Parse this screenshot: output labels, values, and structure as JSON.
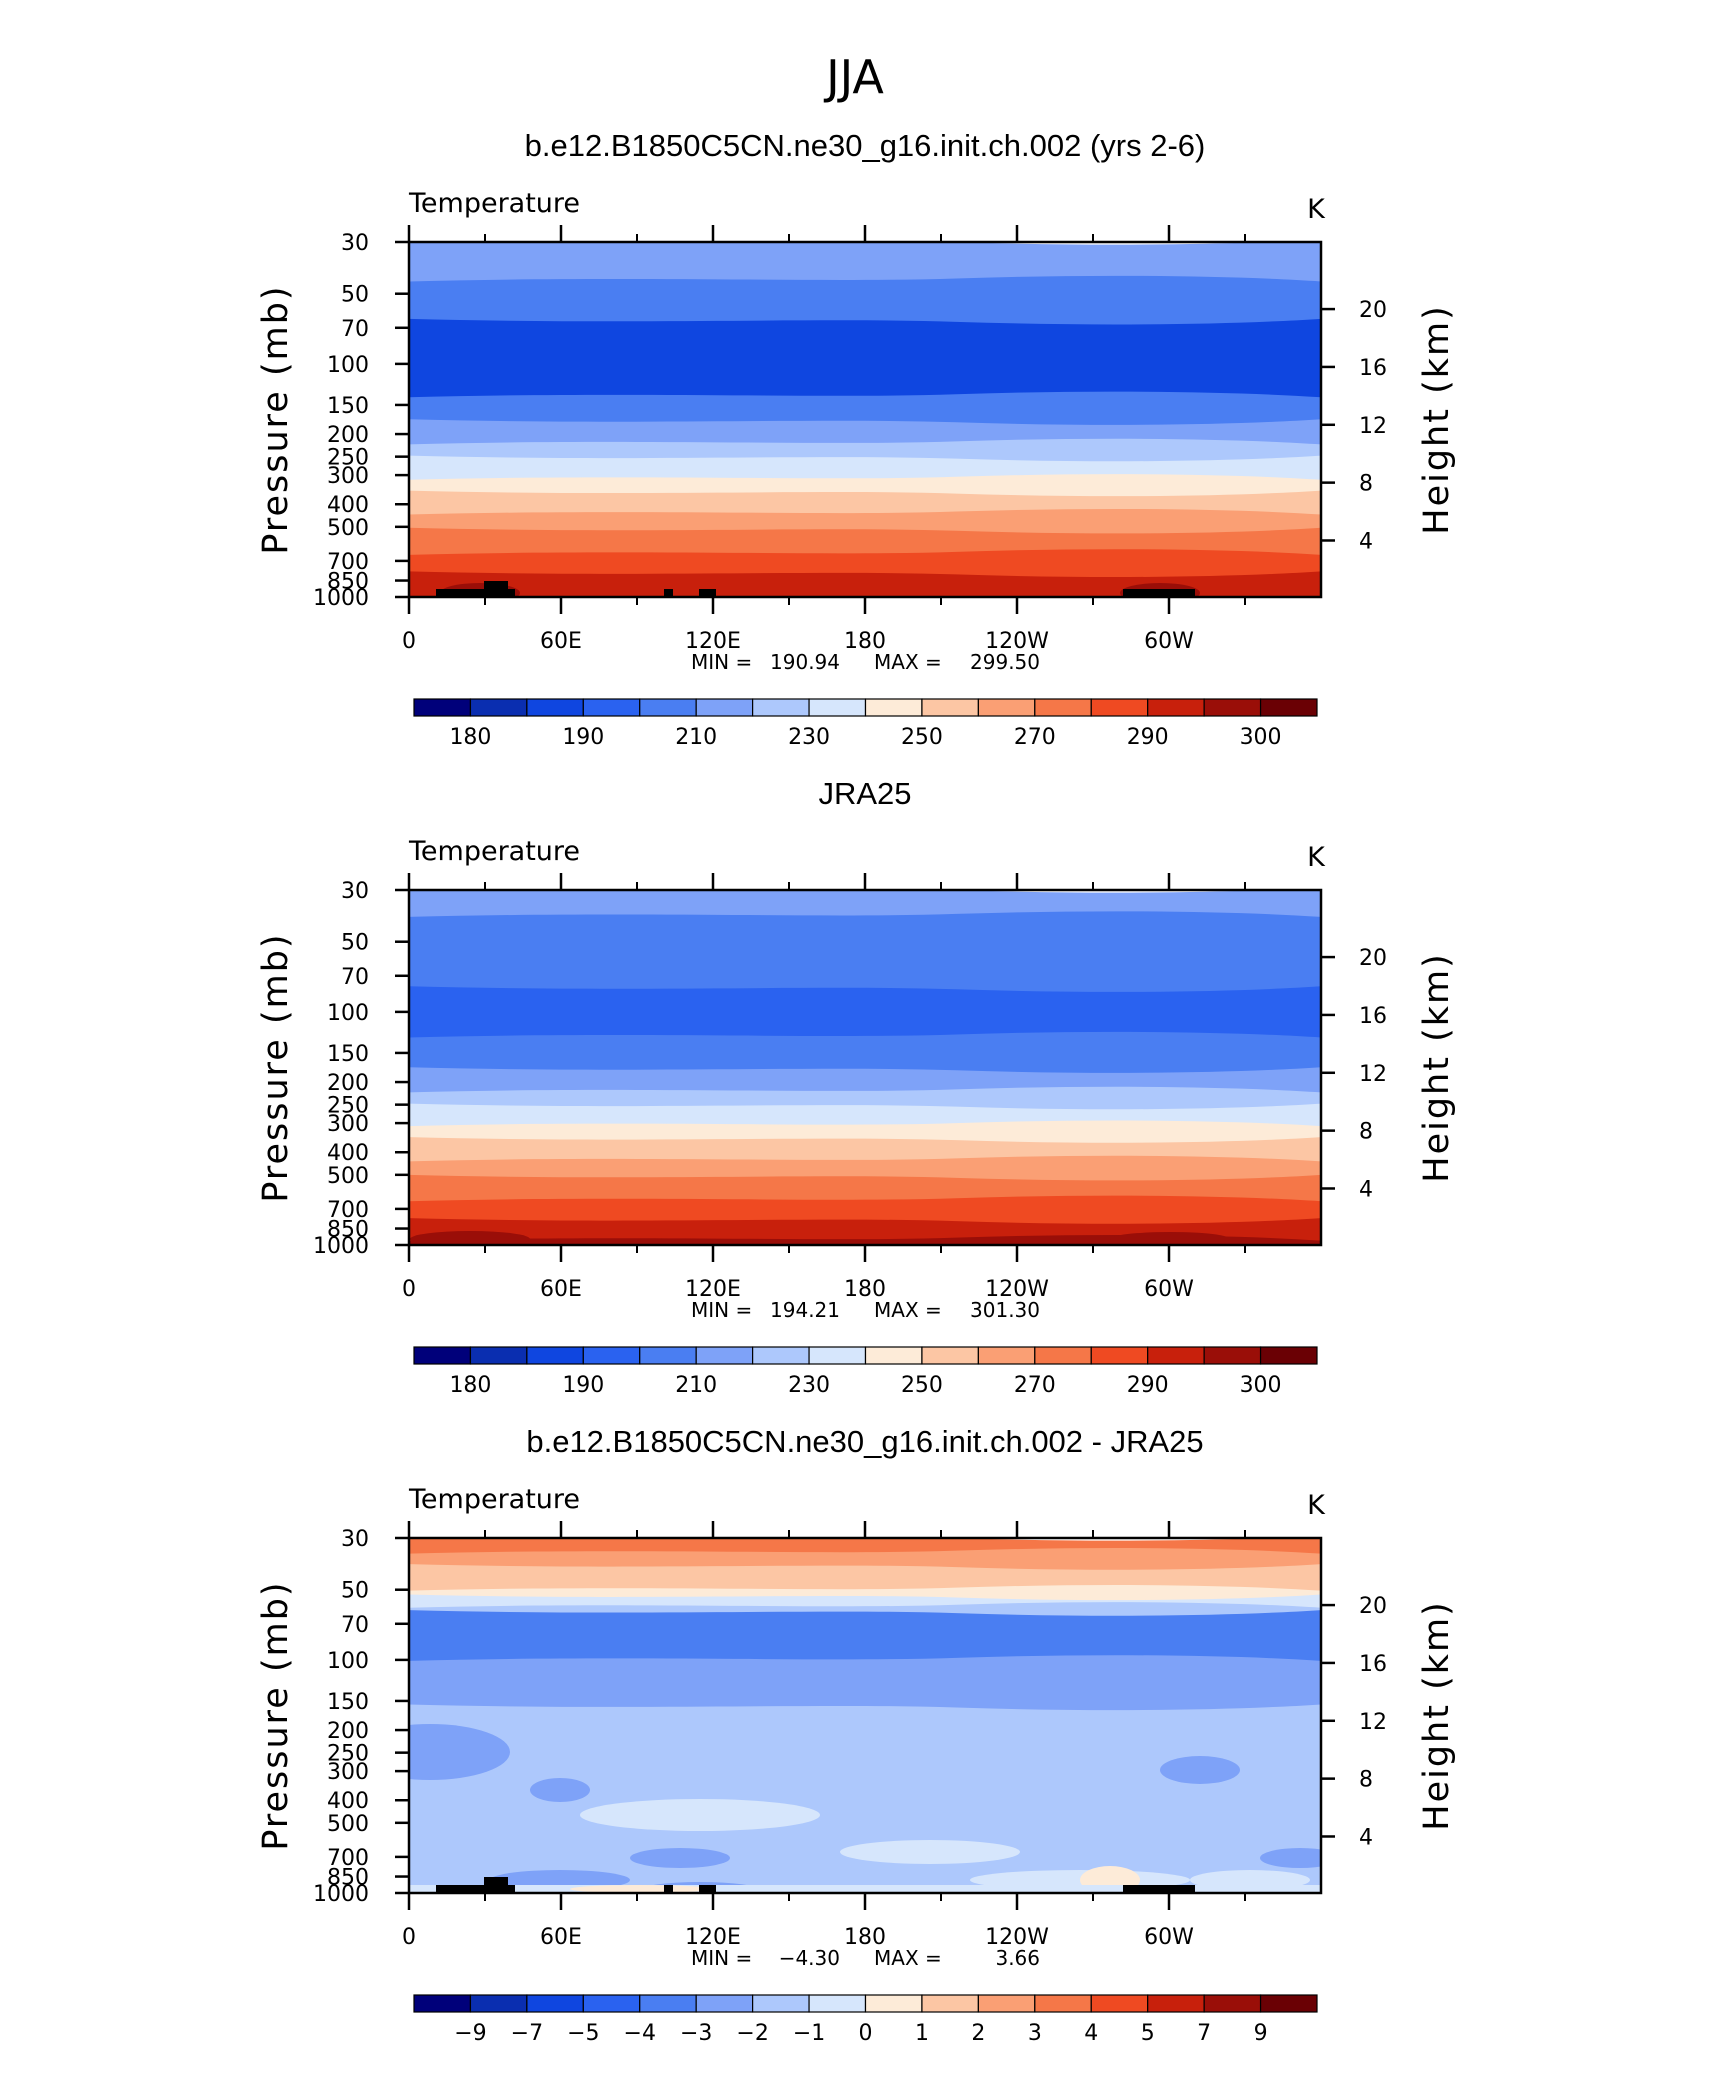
{
  "title": "JJA",
  "chart_data": [
    {
      "type": "contour",
      "title": "b.e12.B1850C5CN.ne30_g16.init.ch.002 (yrs 2-6)",
      "left_label": "Temperature",
      "right_label": "K",
      "ylabel": "Pressure (mb)",
      "ylabel_right": "Height (km)",
      "y_ticks": [
        "30",
        "50",
        "70",
        "100",
        "150",
        "200",
        "250",
        "300",
        "400",
        "500",
        "700",
        "850",
        "1000"
      ],
      "y_right_ticks": [
        "20",
        "16",
        "12",
        "8",
        "4"
      ],
      "x_ticks": [
        "0",
        "60E",
        "120E",
        "180",
        "120W",
        "60W"
      ],
      "min_label": "MIN =",
      "min_value": "190.94",
      "max_label": "MAX =",
      "max_value": "299.50",
      "colorbar": {
        "colors": [
          "#00007a",
          "#0a2eb0",
          "#0f46e0",
          "#2a62f0",
          "#4a7ef2",
          "#7ea2f8",
          "#adc8fc",
          "#d6e6fc",
          "#fdebd8",
          "#fcc6a4",
          "#fa9f74",
          "#f57748",
          "#ef4a22",
          "#c8200c",
          "#9a0e08",
          "#6a0004"
        ],
        "labels": [
          "180",
          "190",
          "210",
          "230",
          "250",
          "270",
          "290",
          "300"
        ]
      },
      "bands": [
        {
          "p": 30,
          "c": 5
        },
        {
          "p": 43,
          "c": 4
        },
        {
          "p": 66,
          "c": 2
        },
        {
          "p": 135,
          "c": 4
        },
        {
          "p": 178,
          "c": 5
        },
        {
          "p": 215,
          "c": 6
        },
        {
          "p": 255,
          "c": 7
        },
        {
          "p": 305,
          "c": 8
        },
        {
          "p": 360,
          "c": 9
        },
        {
          "p": 430,
          "c": 10
        },
        {
          "p": 520,
          "c": 11
        },
        {
          "p": 640,
          "c": 12
        },
        {
          "p": 800,
          "c": 13
        }
      ],
      "terrain": true
    },
    {
      "type": "contour",
      "title": "JRA25",
      "left_label": "Temperature",
      "right_label": "K",
      "ylabel": "Pressure (mb)",
      "ylabel_right": "Height (km)",
      "y_ticks": [
        "30",
        "50",
        "70",
        "100",
        "150",
        "200",
        "250",
        "300",
        "400",
        "500",
        "700",
        "850",
        "1000"
      ],
      "y_right_ticks": [
        "20",
        "16",
        "12",
        "8",
        "4"
      ],
      "x_ticks": [
        "0",
        "60E",
        "120E",
        "180",
        "120W",
        "60W"
      ],
      "min_label": "MIN =",
      "min_value": "194.21",
      "max_label": "MAX =",
      "max_value": "301.30",
      "colorbar": {
        "colors": [
          "#00007a",
          "#0a2eb0",
          "#0f46e0",
          "#2a62f0",
          "#4a7ef2",
          "#7ea2f8",
          "#adc8fc",
          "#d6e6fc",
          "#fdebd8",
          "#fcc6a4",
          "#fa9f74",
          "#f57748",
          "#ef4a22",
          "#c8200c",
          "#9a0e08",
          "#6a0004"
        ],
        "labels": [
          "180",
          "190",
          "210",
          "230",
          "250",
          "270",
          "290",
          "300"
        ]
      },
      "bands": [
        {
          "p": 30,
          "c": 5
        },
        {
          "p": 38,
          "c": 4
        },
        {
          "p": 80,
          "c": 3
        },
        {
          "p": 125,
          "c": 4
        },
        {
          "p": 178,
          "c": 5
        },
        {
          "p": 215,
          "c": 6
        },
        {
          "p": 255,
          "c": 7
        },
        {
          "p": 300,
          "c": 8
        },
        {
          "p": 355,
          "c": 9
        },
        {
          "p": 425,
          "c": 10
        },
        {
          "p": 515,
          "c": 11
        },
        {
          "p": 630,
          "c": 12
        },
        {
          "p": 790,
          "c": 13
        },
        {
          "p": 930,
          "c": 14
        }
      ],
      "terrain": false
    },
    {
      "type": "contour",
      "title": "b.e12.B1850C5CN.ne30_g16.init.ch.002 - JRA25",
      "left_label": "Temperature",
      "right_label": "K",
      "ylabel": "Pressure (mb)",
      "ylabel_right": "Height (km)",
      "y_ticks": [
        "30",
        "50",
        "70",
        "100",
        "150",
        "200",
        "250",
        "300",
        "400",
        "500",
        "700",
        "850",
        "1000"
      ],
      "y_right_ticks": [
        "20",
        "16",
        "12",
        "8",
        "4"
      ],
      "x_ticks": [
        "0",
        "60E",
        "120E",
        "180",
        "120W",
        "60W"
      ],
      "min_label": "MIN =",
      "min_value": "−4.30",
      "max_label": "MAX =",
      "max_value": "3.66",
      "colorbar": {
        "colors": [
          "#00007a",
          "#0a2eb0",
          "#0f46e0",
          "#2a62f0",
          "#4a7ef2",
          "#7ea2f8",
          "#adc8fc",
          "#d6e6fc",
          "#fdebd8",
          "#fcc6a4",
          "#fa9f74",
          "#f57748",
          "#ef4a22",
          "#c8200c",
          "#9a0e08",
          "#6a0004"
        ],
        "labels": [
          "−9",
          "−7",
          "−5",
          "−4",
          "−3",
          "−2",
          "−1",
          "0",
          "1",
          "2",
          "3",
          "4",
          "5",
          "7",
          "9"
        ]
      },
      "bands": [
        {
          "p": 30,
          "c": 11
        },
        {
          "p": 34,
          "c": 10
        },
        {
          "p": 40,
          "c": 9
        },
        {
          "p": 49,
          "c": 8
        },
        {
          "p": 54,
          "c": 7
        },
        {
          "p": 58,
          "c": 6
        },
        {
          "p": 63,
          "c": 4
        },
        {
          "p": 98,
          "c": 5
        },
        {
          "p": 160,
          "c": 6
        },
        {
          "p": 950,
          "c": 8
        }
      ],
      "terrain": true
    }
  ]
}
